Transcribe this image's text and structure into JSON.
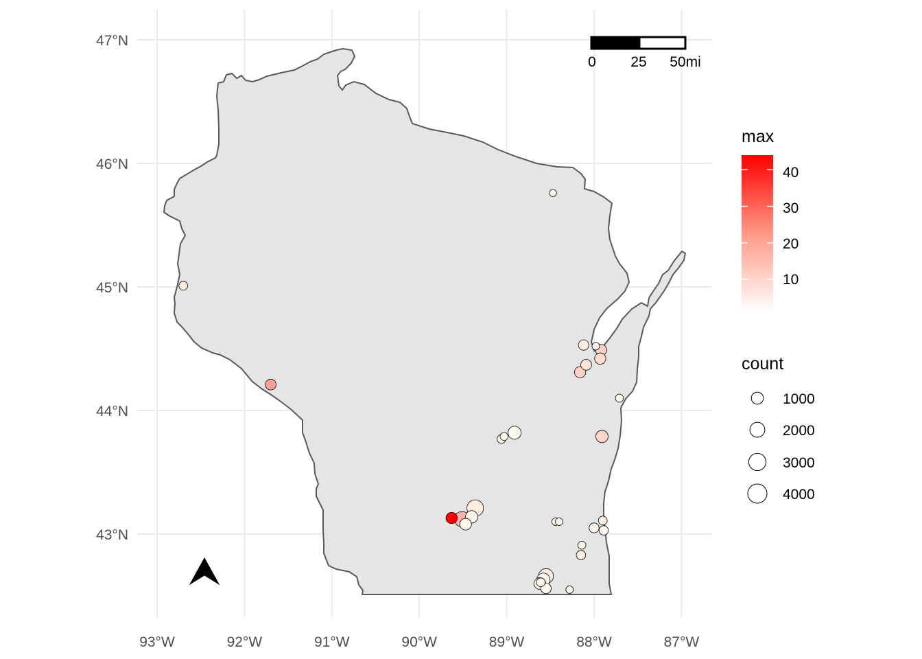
{
  "colors": {
    "state_fill": "#e5e5e5",
    "state_border": "#595959",
    "grid": "#ebebeb",
    "color_low": "#ffffff",
    "color_high": "#ff0000"
  },
  "map": {
    "x_tick_labels": [
      "93°W",
      "92°W",
      "91°W",
      "90°W",
      "89°W",
      "88°W",
      "87°W"
    ],
    "y_tick_labels": [
      "47°N",
      "46°N",
      "45°N",
      "44°N",
      "43°N"
    ],
    "lon_ticks": [
      -93,
      -92,
      -91,
      -90,
      -89,
      -88,
      -87
    ],
    "lat_ticks": [
      47,
      46,
      45,
      44,
      43
    ],
    "north_arrow_icon": "north-arrow-icon"
  },
  "scale_bar": {
    "labels": [
      "0",
      "25",
      "50mi"
    ],
    "length_mi": 50
  },
  "legend_color": {
    "title": "max",
    "tick_values": [
      40,
      30,
      20,
      10
    ],
    "tick_labels": [
      "40",
      "30",
      "20",
      "10"
    ],
    "range": [
      1,
      44
    ]
  },
  "legend_size": {
    "title": "count",
    "values": [
      1000,
      2000,
      3000,
      4000
    ],
    "labels": [
      "1000",
      "2000",
      "3000",
      "4000"
    ]
  },
  "chart_data": {
    "type": "scatter",
    "x_axis": "longitude",
    "y_axis": "latitude",
    "xlim": [
      -93.1,
      -86.75
    ],
    "ylim": [
      42.4,
      47.25
    ],
    "color_variable": "max",
    "size_variable": "count",
    "points": [
      {
        "lon": -88.47,
        "lat": 45.76,
        "count": 100,
        "max": 1
      },
      {
        "lon": -92.7,
        "lat": 45.01,
        "count": 300,
        "max": 4
      },
      {
        "lon": -91.7,
        "lat": 44.21,
        "count": 700,
        "max": 17
      },
      {
        "lon": -88.12,
        "lat": 44.53,
        "count": 600,
        "max": 4
      },
      {
        "lon": -87.98,
        "lat": 44.52,
        "count": 150,
        "max": 2
      },
      {
        "lon": -87.92,
        "lat": 44.49,
        "count": 800,
        "max": 9
      },
      {
        "lon": -87.93,
        "lat": 44.42,
        "count": 800,
        "max": 7
      },
      {
        "lon": -88.09,
        "lat": 44.37,
        "count": 700,
        "max": 6
      },
      {
        "lon": -88.16,
        "lat": 44.31,
        "count": 800,
        "max": 9
      },
      {
        "lon": -87.71,
        "lat": 44.1,
        "count": 200,
        "max": 2
      },
      {
        "lon": -87.91,
        "lat": 43.79,
        "count": 1100,
        "max": 8
      },
      {
        "lon": -88.91,
        "lat": 43.82,
        "count": 1300,
        "max": 2
      },
      {
        "lon": -89.03,
        "lat": 43.79,
        "count": 200,
        "max": 2
      },
      {
        "lon": -89.06,
        "lat": 43.77,
        "count": 300,
        "max": 3
      },
      {
        "lon": -89.36,
        "lat": 43.21,
        "count": 2700,
        "max": 4
      },
      {
        "lon": -89.4,
        "lat": 43.14,
        "count": 1100,
        "max": 2
      },
      {
        "lon": -89.63,
        "lat": 43.13,
        "count": 800,
        "max": 44
      },
      {
        "lon": -89.51,
        "lat": 43.12,
        "count": 2200,
        "max": 14
      },
      {
        "lon": -89.47,
        "lat": 43.08,
        "count": 900,
        "max": 2
      },
      {
        "lon": -88.44,
        "lat": 43.1,
        "count": 150,
        "max": 2
      },
      {
        "lon": -88.4,
        "lat": 43.1,
        "count": 150,
        "max": 2
      },
      {
        "lon": -87.9,
        "lat": 43.11,
        "count": 300,
        "max": 3
      },
      {
        "lon": -88.0,
        "lat": 43.05,
        "count": 500,
        "max": 2
      },
      {
        "lon": -87.89,
        "lat": 43.03,
        "count": 400,
        "max": 2
      },
      {
        "lon": -88.14,
        "lat": 42.91,
        "count": 200,
        "max": 2
      },
      {
        "lon": -88.15,
        "lat": 42.83,
        "count": 400,
        "max": 3
      },
      {
        "lon": -88.55,
        "lat": 42.66,
        "count": 2000,
        "max": 4
      },
      {
        "lon": -88.58,
        "lat": 42.63,
        "count": 1400,
        "max": 2
      },
      {
        "lon": -88.62,
        "lat": 42.6,
        "count": 900,
        "max": 3
      },
      {
        "lon": -88.61,
        "lat": 42.61,
        "count": 300,
        "max": 2
      },
      {
        "lon": -88.55,
        "lat": 42.56,
        "count": 600,
        "max": 2
      },
      {
        "lon": -88.28,
        "lat": 42.55,
        "count": 150,
        "max": 2
      }
    ]
  }
}
